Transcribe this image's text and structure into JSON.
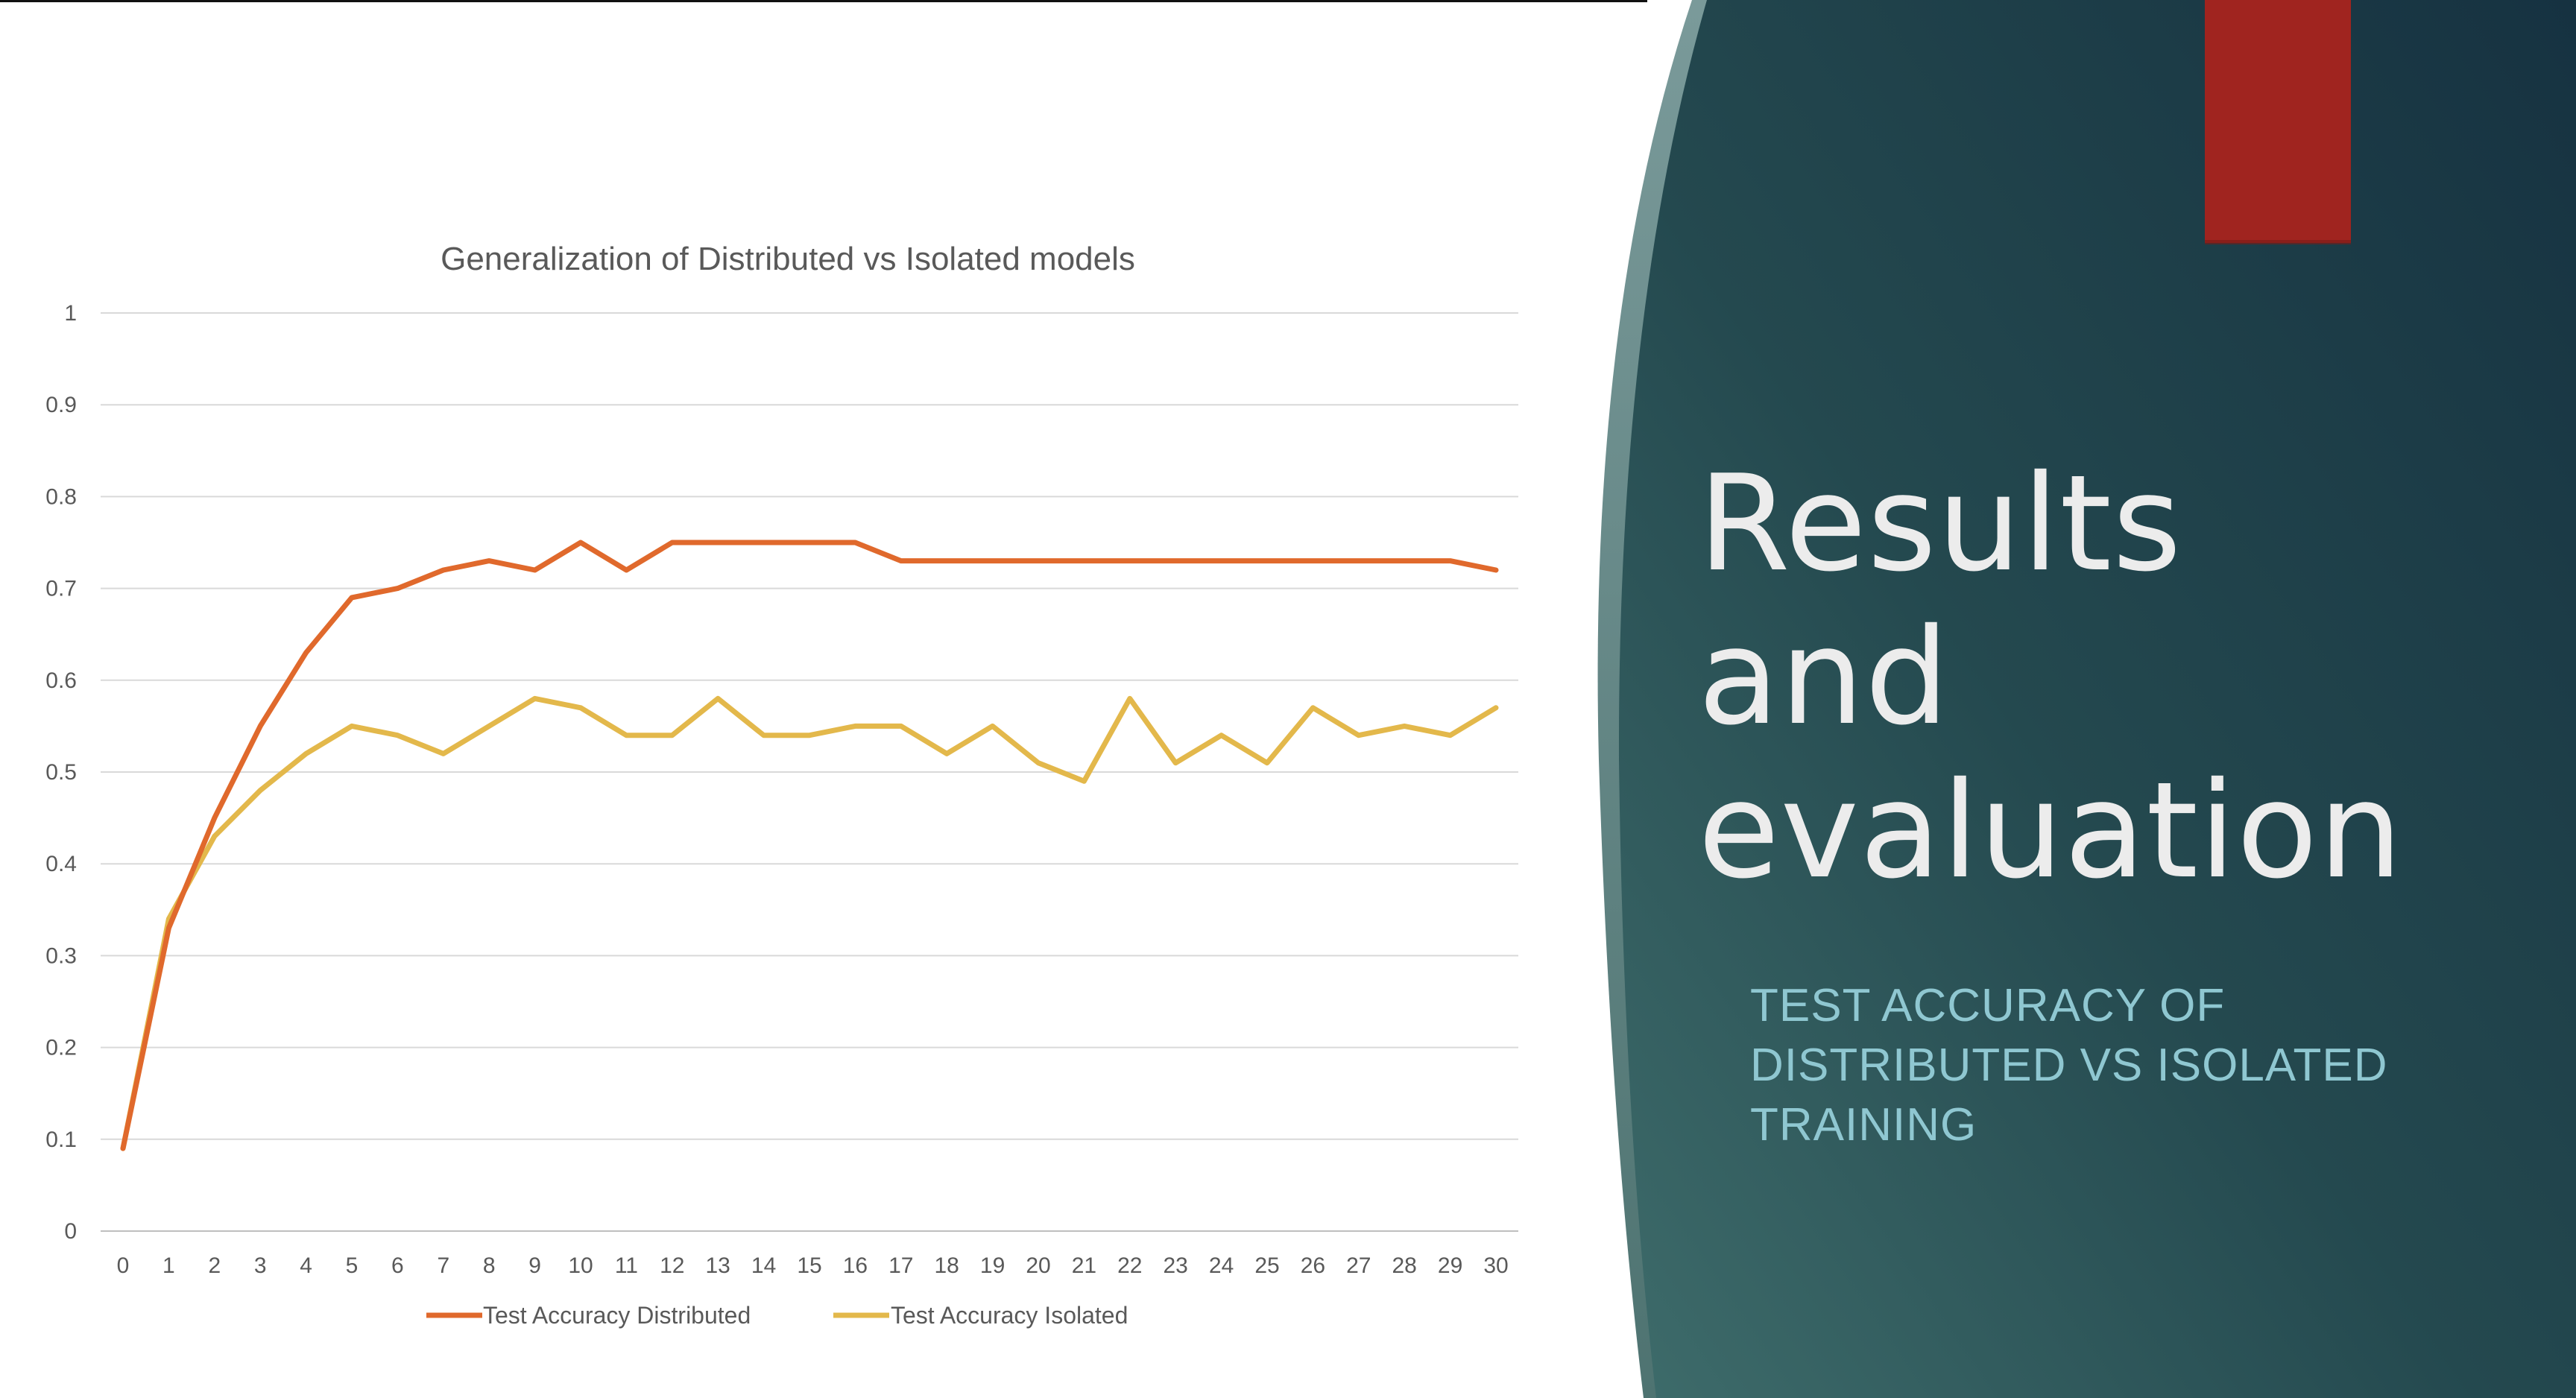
{
  "slide": {
    "title_lines": [
      "Results",
      "and",
      "evaluation"
    ],
    "subtitle_lines": [
      "TEST ACCURACY OF",
      "DISTRIBUTED VS ISOLATED",
      "TRAINING"
    ],
    "colors": {
      "panel": "#1d3d49",
      "panel_light": "#5e7f7f",
      "accent_red": "#a0241f",
      "title_text": "#ececec",
      "subtitle_text": "#8fc7d1"
    }
  },
  "chart_data": {
    "type": "line",
    "title": "Generalization of Distributed vs Isolated models",
    "x": [
      0,
      1,
      2,
      3,
      4,
      5,
      6,
      7,
      8,
      9,
      10,
      11,
      12,
      13,
      14,
      15,
      16,
      17,
      18,
      19,
      20,
      21,
      22,
      23,
      24,
      25,
      26,
      27,
      28,
      29,
      30
    ],
    "ylim": [
      0,
      1
    ],
    "yticks": [
      "0",
      "0.1",
      "0.2",
      "0.3",
      "0.4",
      "0.5",
      "0.6",
      "0.7",
      "0.8",
      "0.9",
      "1"
    ],
    "grid": true,
    "legend_position": "bottom",
    "series": [
      {
        "name": "Test Accuracy Distributed",
        "color": "#e0692c",
        "values": [
          0.09,
          0.33,
          0.45,
          0.55,
          0.63,
          0.69,
          0.7,
          0.72,
          0.73,
          0.72,
          0.75,
          0.72,
          0.75,
          0.75,
          0.75,
          0.75,
          0.75,
          0.73,
          0.73,
          0.73,
          0.73,
          0.73,
          0.73,
          0.73,
          0.73,
          0.73,
          0.73,
          0.73,
          0.73,
          0.73,
          0.72
        ]
      },
      {
        "name": "Test Accuracy Isolated",
        "color": "#e3b84b",
        "values": [
          0.09,
          0.34,
          0.43,
          0.48,
          0.52,
          0.55,
          0.54,
          0.52,
          0.55,
          0.58,
          0.57,
          0.54,
          0.54,
          0.58,
          0.54,
          0.54,
          0.55,
          0.55,
          0.52,
          0.55,
          0.51,
          0.49,
          0.58,
          0.51,
          0.54,
          0.51,
          0.57,
          0.54,
          0.55,
          0.54,
          0.57
        ]
      }
    ]
  }
}
